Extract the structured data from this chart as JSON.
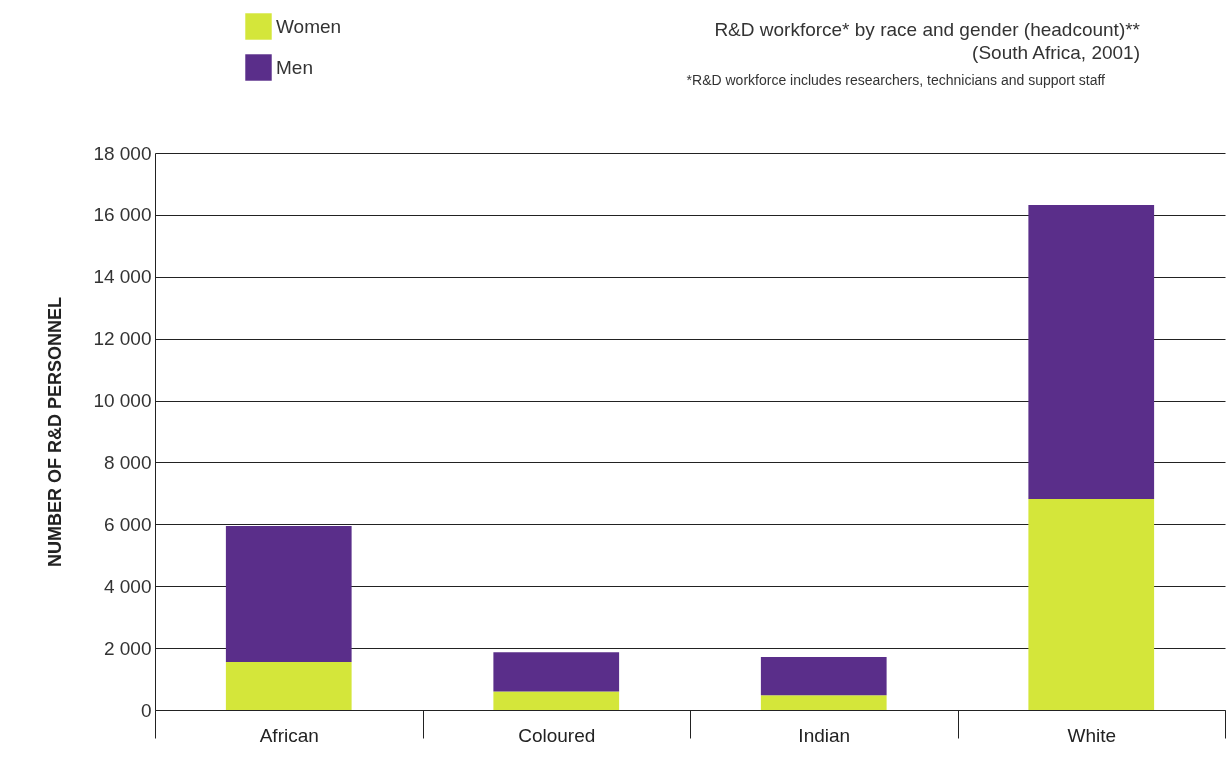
{
  "chart_data": {
    "type": "bar",
    "title": "R&D workforce* by race and gender (headcount)**",
    "subtitle": "(South Africa, 2001)",
    "annotations": [
      "*R&D workforce includes researchers, technicians and support staff"
    ],
    "ylabel": "NUMBER OF R&D PERSONNEL",
    "categories": [
      "African",
      "Coloured",
      "Indian",
      "White"
    ],
    "stacked": true,
    "series": [
      {
        "name": "Women",
        "color": "#d4e63a",
        "values": [
          1550,
          600,
          480,
          6820
        ]
      },
      {
        "name": "Men",
        "color": "#5a2e8a",
        "values": [
          4400,
          1270,
          1230,
          9500
        ]
      }
    ],
    "ylim": [
      0,
      18000
    ],
    "yticks": [
      {
        "value": 0,
        "label": "0"
      },
      {
        "value": 2000,
        "label": "2 000"
      },
      {
        "value": 4000,
        "label": "4 000"
      },
      {
        "value": 6000,
        "label": "6 000"
      },
      {
        "value": 8000,
        "label": "8 000"
      },
      {
        "value": 10000,
        "label": "10 000"
      },
      {
        "value": 12000,
        "label": "12 000"
      },
      {
        "value": 14000,
        "label": "14 000"
      },
      {
        "value": 16000,
        "label": "16 000"
      },
      {
        "value": 18000,
        "label": "18 000"
      }
    ],
    "grid": "y",
    "legend": "top left"
  }
}
